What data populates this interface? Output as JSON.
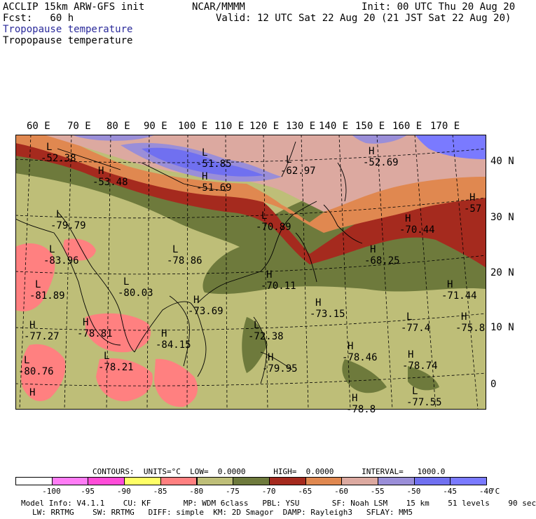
{
  "header": {
    "model": "ACCLIP 15km ARW-GFS init",
    "center": "NCAR/MMMM",
    "init": "Init: 00 UTC Thu 20 Aug 20",
    "fcst": "Fcst:   60 h",
    "valid": "Valid: 12 UTC Sat 22 Aug 20 (21 JST Sat 22 Aug 20)",
    "field1": "Tropopause temperature",
    "field2": "Tropopause temperature"
  },
  "map": {
    "lon_labels": [
      "60 E",
      "70 E",
      "80 E",
      "90 E",
      "100 E",
      "110 E",
      "120 E",
      "130 E",
      "140 E",
      "150 E",
      "160 E",
      "170 E"
    ],
    "lat_labels": [
      "40 N",
      "30 N",
      "20 N",
      "10 N",
      "0"
    ],
    "markers": [
      {
        "letter": "L",
        "value": "-52.38"
      },
      {
        "letter": "L",
        "value": "-51.85"
      },
      {
        "letter": "H",
        "value": "-53.48"
      },
      {
        "letter": "H",
        "value": "-51.69"
      },
      {
        "letter": "L",
        "value": "-62.97"
      },
      {
        "letter": "H",
        "value": "-52.69"
      },
      {
        "letter": "H",
        "value": "-57"
      },
      {
        "letter": "L",
        "value": "-79.79"
      },
      {
        "letter": "L",
        "value": "-70.89"
      },
      {
        "letter": "H",
        "value": "-70.44"
      },
      {
        "letter": "L",
        "value": "-83.96"
      },
      {
        "letter": "L",
        "value": "-78.86"
      },
      {
        "letter": "H",
        "value": "-68.25"
      },
      {
        "letter": "L",
        "value": "-81.89"
      },
      {
        "letter": "L",
        "value": "-80.03"
      },
      {
        "letter": "H",
        "value": "-70.11"
      },
      {
        "letter": "H",
        "value": "-71.44"
      },
      {
        "letter": "H",
        "value": "-73.69"
      },
      {
        "letter": "H",
        "value": "-73.15"
      },
      {
        "letter": "H",
        "value": "-77.27"
      },
      {
        "letter": "H",
        "value": "-78.81"
      },
      {
        "letter": "L",
        "value": "-77.4"
      },
      {
        "letter": "H",
        "value": "-75.8"
      },
      {
        "letter": "H",
        "value": "-84.15"
      },
      {
        "letter": "L",
        "value": "-72.38"
      },
      {
        "letter": "L",
        "value": "-80.76"
      },
      {
        "letter": "L",
        "value": "-78.21"
      },
      {
        "letter": "H",
        "value": "-78.46"
      },
      {
        "letter": "H",
        "value": "-78.74"
      },
      {
        "letter": "H",
        "value": "-79.95"
      },
      {
        "letter": "H",
        "value": ""
      },
      {
        "letter": "H",
        "value": "-78.8"
      },
      {
        "letter": "L",
        "value": "-77.55"
      }
    ]
  },
  "contours": {
    "label": "CONTOURS:  UNITS=°C  LOW=  0.0000      HIGH=  0.0000      INTERVAL=   1000.0"
  },
  "legend": {
    "ticks": [
      "-100",
      "-95",
      "-90",
      "-85",
      "-80",
      "-75",
      "-70",
      "-65",
      "-60",
      "-55",
      "-50",
      "-45",
      "-40",
      "°C"
    ],
    "colors": [
      "#ffffff",
      "#ff7cf5",
      "#ff4cd8",
      "#ffff66",
      "#ff8080",
      "#bebe78",
      "#6e7a3c",
      "#a52a1e",
      "#e08850",
      "#dca9a0",
      "#9a8ed8",
      "#7070f0",
      "#7a7aff"
    ]
  },
  "footer": {
    "line1": "Model Info: V4.1.1    CU: KF       MP: WDM 6class   PBL: YSU       SF: Noah LSM    15 km    51 levels    90 sec",
    "line2": "LW: RRTMG    SW: RRTMG   DIFF: simple  KM: 2D Smagor  DAMP: Rayleigh3   SFLAY: MM5"
  }
}
